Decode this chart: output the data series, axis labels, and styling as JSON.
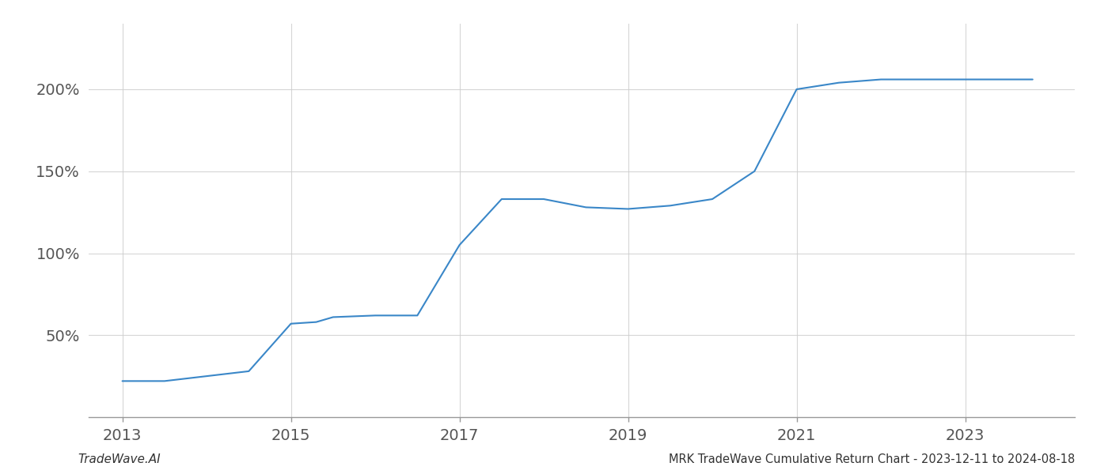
{
  "x_values": [
    2013.0,
    2013.5,
    2014.0,
    2014.5,
    2015.0,
    2015.3,
    2015.5,
    2016.0,
    2016.5,
    2017.0,
    2017.5,
    2018.0,
    2018.5,
    2019.0,
    2019.5,
    2020.0,
    2020.5,
    2021.0,
    2021.5,
    2022.0,
    2022.5,
    2023.0,
    2023.8
  ],
  "y_values": [
    22,
    22,
    25,
    28,
    57,
    58,
    61,
    62,
    62,
    105,
    133,
    133,
    128,
    127,
    129,
    133,
    150,
    200,
    204,
    206,
    206,
    206,
    206
  ],
  "line_color": "#3a87c8",
  "background_color": "#ffffff",
  "grid_color": "#cccccc",
  "title": "MRK TradeWave Cumulative Return Chart - 2023-12-11 to 2024-08-18",
  "watermark": "TradeWave.AI",
  "yticks": [
    50,
    100,
    150,
    200
  ],
  "ytick_labels": [
    "50%",
    "100%",
    "150%",
    "200%"
  ],
  "xticks": [
    2013,
    2015,
    2017,
    2019,
    2021,
    2023
  ],
  "xlim": [
    2012.6,
    2024.3
  ],
  "ylim": [
    0,
    240
  ]
}
